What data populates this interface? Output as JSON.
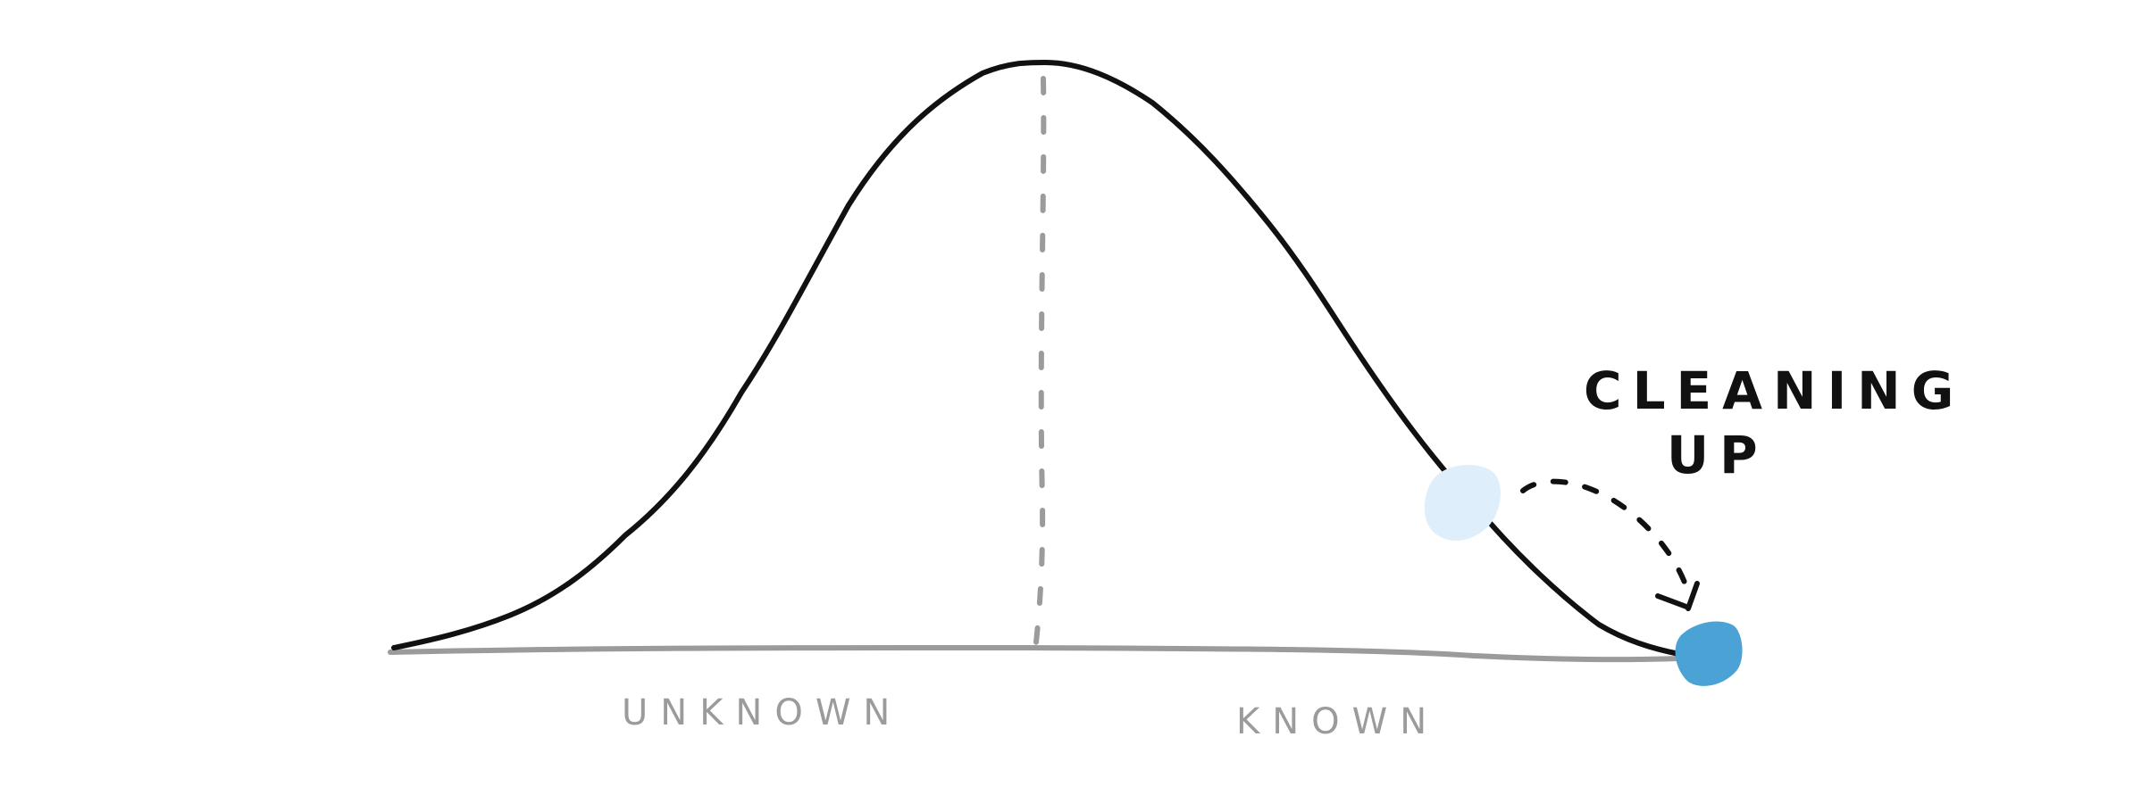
{
  "diagram": {
    "labels": {
      "left_region": "UNKNOWN",
      "right_region": "KNOWN",
      "annotation_line1": "CLEANING",
      "annotation_line2": "UP"
    },
    "colors": {
      "curve": "#111111",
      "baseline": "#9b9b9b",
      "midline": "#9b9b9b",
      "ghost_dot": "#deeefb",
      "active_dot": "#4aa3d4",
      "arrow": "#111111",
      "label_text": "#9b9b9b",
      "annotation_text": "#111111"
    }
  }
}
